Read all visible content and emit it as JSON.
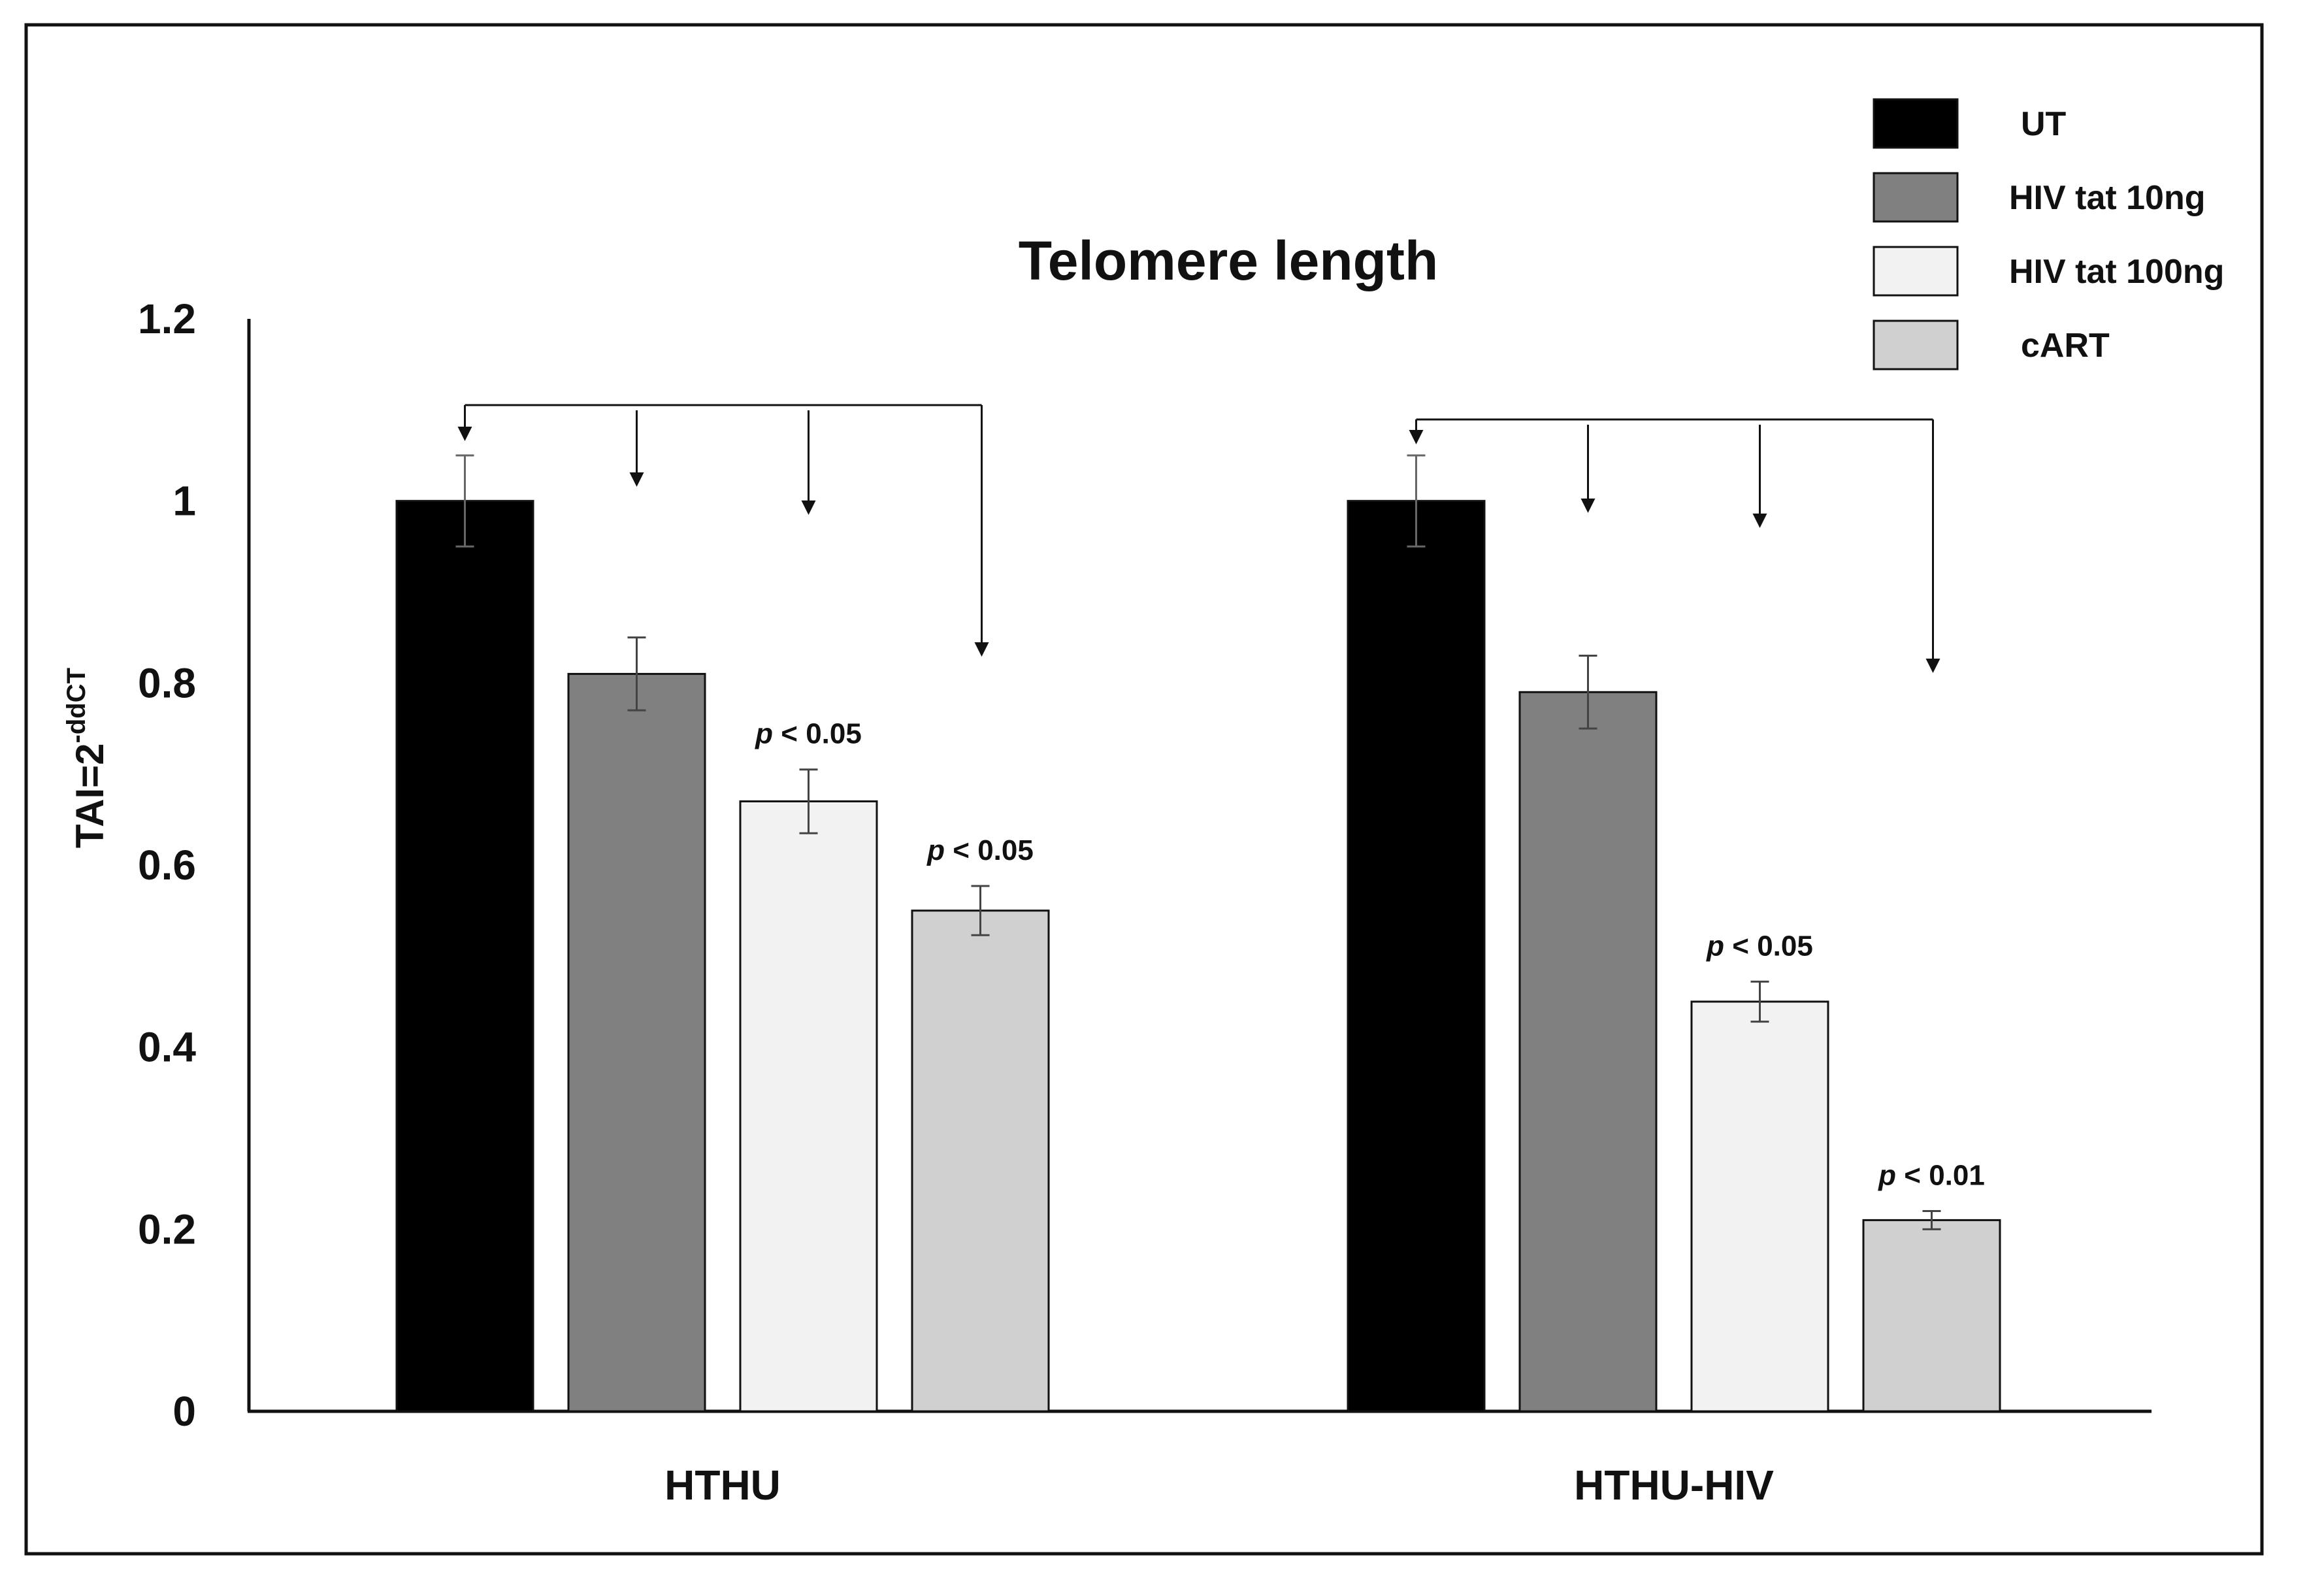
{
  "chart_data": {
    "type": "bar",
    "title": "Telomere length",
    "ylabel": {
      "base": "TAI=2",
      "superscript": "-ddCT"
    },
    "xlabel": "",
    "ylim": [
      0,
      1.2
    ],
    "yticks": [
      {
        "value": 0,
        "label": "0"
      },
      {
        "value": 0.2,
        "label": "0.2"
      },
      {
        "value": 0.4,
        "label": "0.4"
      },
      {
        "value": 0.6,
        "label": "0.6"
      },
      {
        "value": 0.8,
        "label": "0.8"
      },
      {
        "value": 1.0,
        "label": "1"
      },
      {
        "value": 1.2,
        "label": "1.2"
      }
    ],
    "categories": [
      "HTHU",
      "HTHU-HIV"
    ],
    "series": [
      {
        "name": "UT",
        "color": "#000000",
        "values": [
          1.0,
          1.0
        ],
        "errors": [
          0.05,
          0.05
        ]
      },
      {
        "name": "HIV tat 10ng",
        "color": "#808080",
        "values": [
          0.81,
          0.79
        ],
        "errors": [
          0.04,
          0.04
        ]
      },
      {
        "name": "HIV tat 100ng",
        "color": "#f2f2f2",
        "values": [
          0.67,
          0.45
        ],
        "errors": [
          0.035,
          0.022
        ]
      },
      {
        "name": "cART",
        "color": "#d0d0d0",
        "values": [
          0.55,
          0.21
        ],
        "errors": [
          0.027,
          0.01
        ]
      }
    ],
    "annotations": [
      {
        "category": 0,
        "series": 2,
        "p": "p",
        "text": " < 0.05"
      },
      {
        "category": 0,
        "series": 3,
        "p": "p",
        "text": " < 0.05"
      },
      {
        "category": 1,
        "series": 2,
        "p": "p",
        "text": " < 0.05"
      },
      {
        "category": 1,
        "series": 3,
        "p": "p",
        "text": " < 0.01"
      }
    ],
    "comparison_brackets": [
      {
        "category": 0,
        "from_series": 0,
        "to_series": [
          0,
          1,
          2,
          3
        ]
      },
      {
        "category": 1,
        "from_series": 0,
        "to_series": [
          0,
          1,
          2,
          3
        ]
      }
    ],
    "legend_position": "top-right"
  }
}
